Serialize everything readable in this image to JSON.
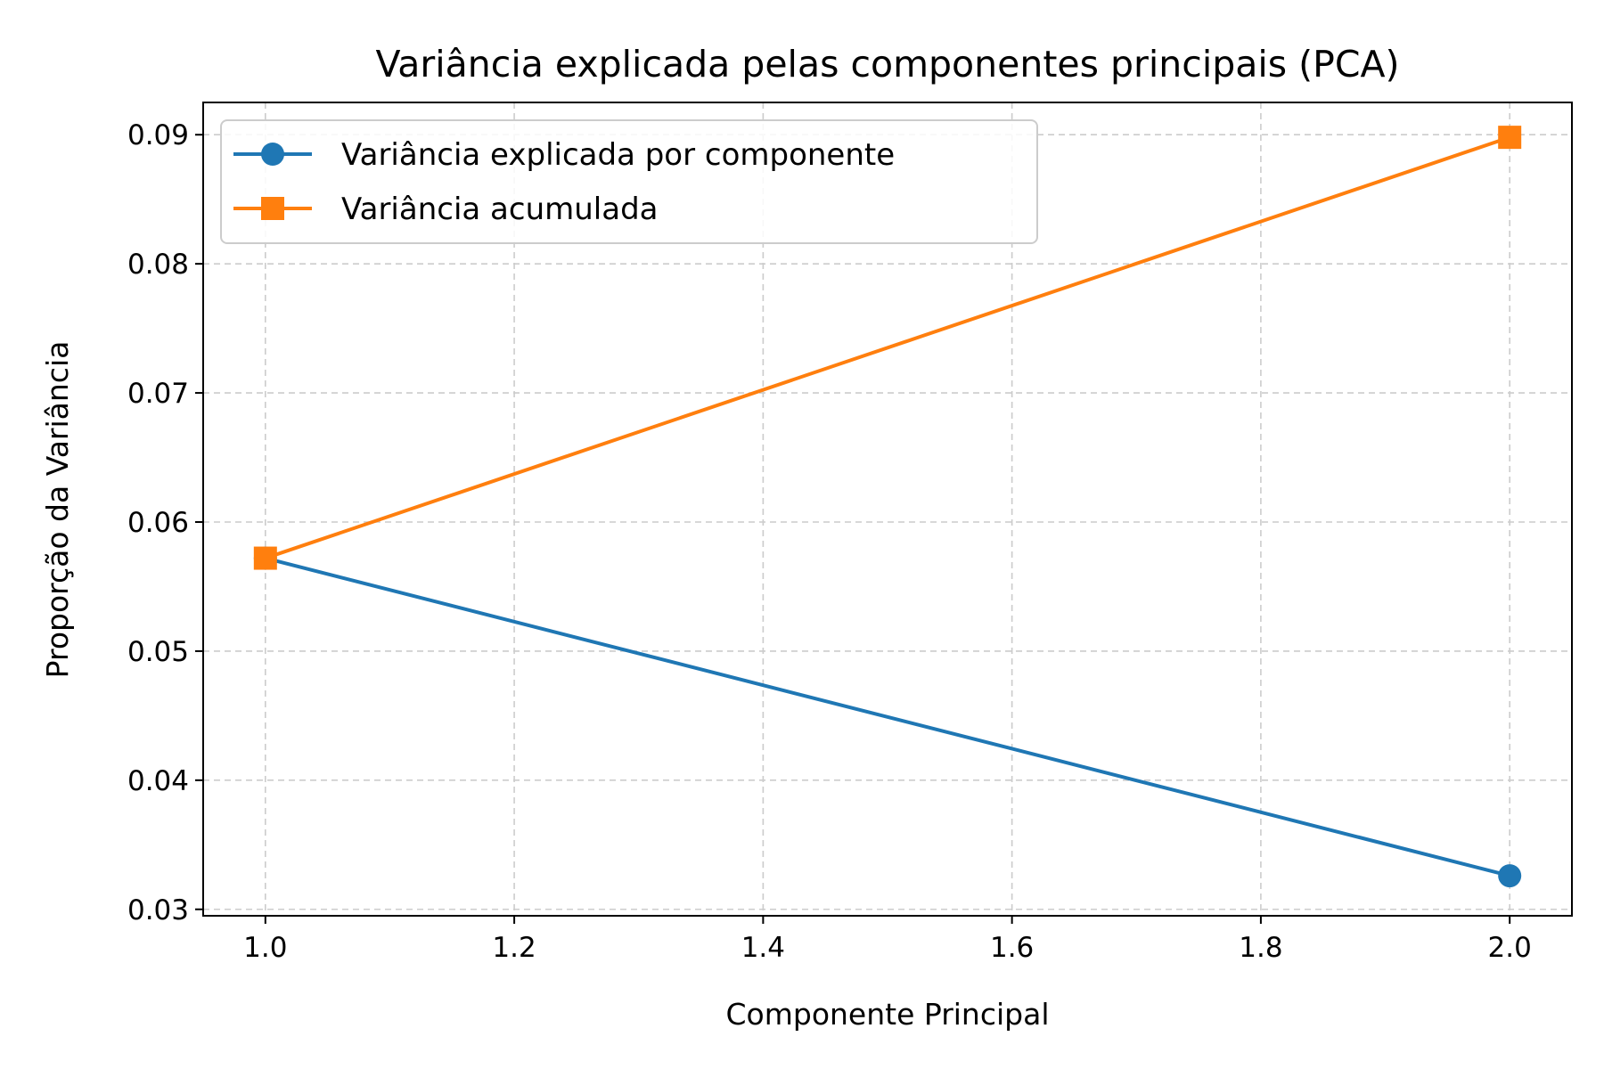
{
  "chart_data": {
    "type": "line",
    "title": "Variância explicada pelas componentes principais (PCA)",
    "xlabel": "Componente Principal",
    "ylabel": "Proporção da Variância",
    "xlim": [
      0.95,
      2.05
    ],
    "ylim": [
      0.0295,
      0.0925
    ],
    "x_ticks": [
      1.0,
      1.2,
      1.4,
      1.6,
      1.8,
      2.0
    ],
    "x_tick_labels": [
      "1.0",
      "1.2",
      "1.4",
      "1.6",
      "1.8",
      "2.0"
    ],
    "y_ticks": [
      0.03,
      0.04,
      0.05,
      0.06,
      0.07,
      0.08,
      0.09
    ],
    "y_tick_labels": [
      "0.03",
      "0.04",
      "0.05",
      "0.06",
      "0.07",
      "0.08",
      "0.09"
    ],
    "grid": true,
    "legend_position": "top-left",
    "series": [
      {
        "name": "Variância explicada por componente",
        "color": "#1f77b4",
        "marker": "circle",
        "x": [
          1,
          2
        ],
        "y": [
          0.0572,
          0.0326
        ]
      },
      {
        "name": "Variância acumulada",
        "color": "#ff7f0e",
        "marker": "square",
        "x": [
          1,
          2
        ],
        "y": [
          0.0572,
          0.0898
        ]
      }
    ]
  }
}
